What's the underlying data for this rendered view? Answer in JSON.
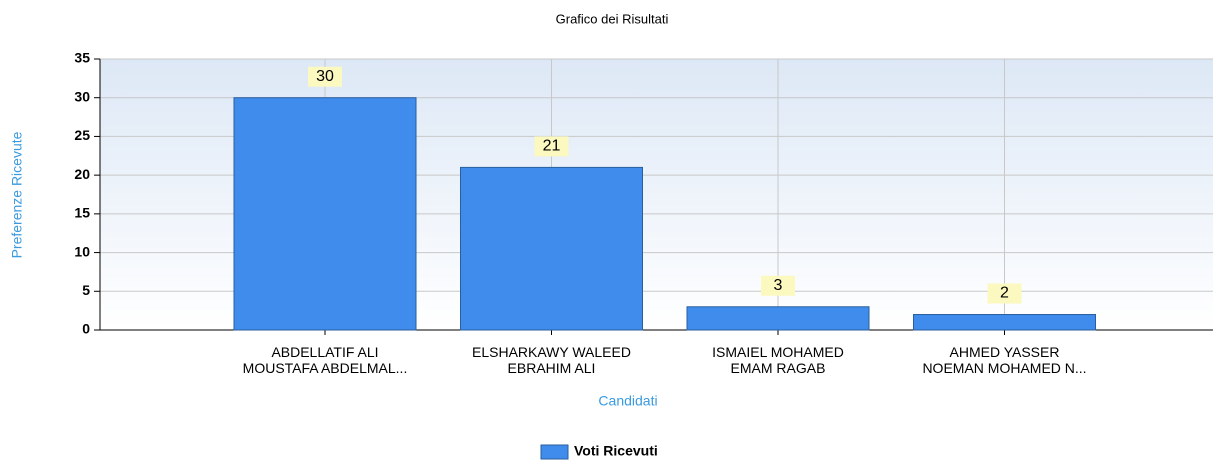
{
  "chart_data": {
    "type": "bar",
    "title": "Grafico dei Risultati",
    "x_label": "Candidati",
    "y_label": "Preferenze Ricevute",
    "categories": [
      [
        "ABDELLATIF ALI",
        "MOUSTAFA ABDELMAL..."
      ],
      [
        "ELSHARKAWY WALEED",
        "EBRAHIM ALI"
      ],
      [
        "ISMAIEL MOHAMED",
        "EMAM RAGAB"
      ],
      [
        "AHMED YASSER",
        "NOEMAN MOHAMED N..."
      ]
    ],
    "series": [
      {
        "name": "Voti Ricevuti",
        "color": "#3f8cec",
        "values": [
          30,
          21,
          3,
          2
        ]
      }
    ],
    "ylim": [
      0,
      35
    ],
    "yticks": [
      0,
      5,
      10,
      15,
      20,
      25,
      30,
      35
    ],
    "grid": true,
    "legend": "bottom"
  }
}
